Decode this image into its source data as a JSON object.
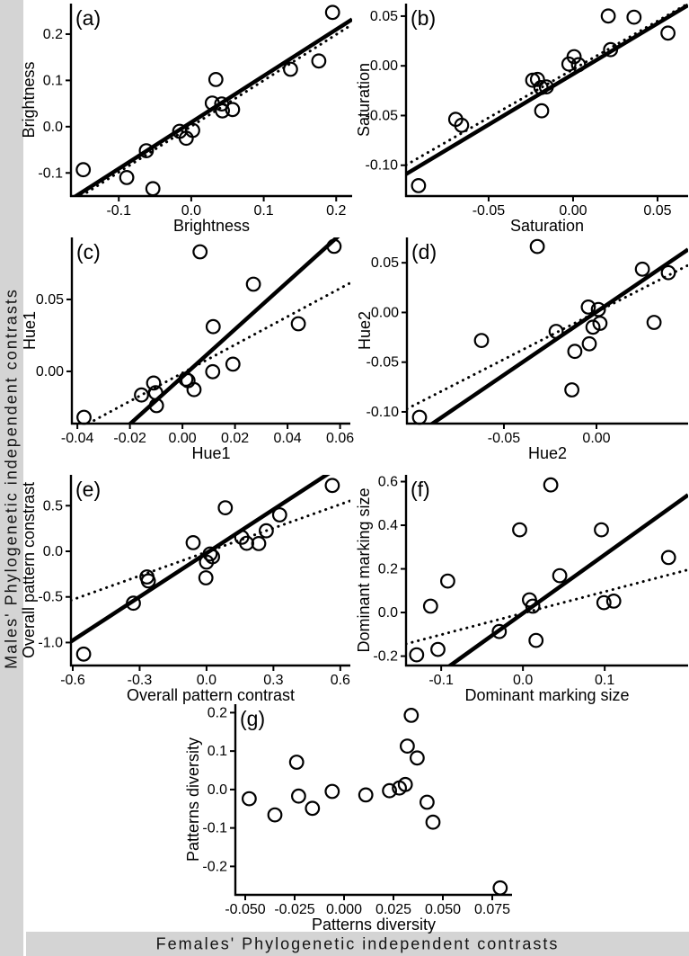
{
  "figure": {
    "left_strip_label": "Males' Phylogenetic independent contrasts",
    "bottom_strip_label": "Females' Phylogenetic independent contrasts",
    "strip_bg": "#d4d4d4",
    "ink": "#000000",
    "background": "#ffffff"
  },
  "chart_data": [
    {
      "id": "a",
      "type": "scatter",
      "tag": "(a)",
      "xlabel": "Brightness",
      "ylabel": "Brightness",
      "xlim": [
        -0.166,
        0.222
      ],
      "ylim": [
        -0.15,
        0.266
      ],
      "xticks": [
        -0.1,
        0.0,
        0.1,
        0.2
      ],
      "xtick_labels": [
        "-0.1",
        "0.0",
        "0.1",
        "0.2"
      ],
      "yticks": [
        -0.1,
        0.0,
        0.1,
        0.2
      ],
      "ytick_labels": [
        "-0.1",
        "0.0",
        "0.1",
        "0.2"
      ],
      "points": [
        [
          -0.149,
          -0.093
        ],
        [
          -0.089,
          -0.11
        ],
        [
          -0.062,
          -0.052
        ],
        [
          -0.053,
          -0.134
        ],
        [
          -0.016,
          -0.01
        ],
        [
          -0.007,
          -0.025
        ],
        [
          0.002,
          -0.008
        ],
        [
          0.029,
          0.051
        ],
        [
          0.034,
          0.102
        ],
        [
          0.042,
          0.049
        ],
        [
          0.043,
          0.034
        ],
        [
          0.057,
          0.037
        ],
        [
          0.137,
          0.124
        ],
        [
          0.176,
          0.142
        ],
        [
          0.195,
          0.247
        ]
      ],
      "lines": [
        {
          "style": "solid",
          "x1": -0.166,
          "y1": -0.157,
          "x2": 0.222,
          "y2": 0.232
        },
        {
          "style": "dotted",
          "x1": -0.166,
          "y1": -0.164,
          "x2": 0.222,
          "y2": 0.221
        }
      ]
    },
    {
      "id": "b",
      "type": "scatter",
      "tag": "(b)",
      "xlabel": "Saturation",
      "ylabel": "Saturation",
      "xlim": [
        -0.0989,
        0.0681
      ],
      "ylim": [
        -0.131,
        0.0626
      ],
      "xticks": [
        -0.05,
        0.0,
        0.05
      ],
      "xtick_labels": [
        "-0.05",
        "0.00",
        "0.05"
      ],
      "yticks": [
        -0.1,
        -0.05,
        0.0,
        0.05
      ],
      "ytick_labels": [
        "-0.10",
        "-0.05",
        "0.00",
        "0.05"
      ],
      "points": [
        [
          -0.0915,
          -0.1205
        ],
        [
          -0.0695,
          -0.0538
        ],
        [
          -0.066,
          -0.0598
        ],
        [
          -0.0239,
          -0.0145
        ],
        [
          -0.0211,
          -0.0137
        ],
        [
          -0.019,
          -0.0219
        ],
        [
          -0.0158,
          -0.0212
        ],
        [
          -0.0186,
          -0.0452
        ],
        [
          -0.0025,
          0.0018
        ],
        [
          0.0006,
          0.0092
        ],
        [
          0.0032,
          0.0012
        ],
        [
          0.0208,
          0.0501
        ],
        [
          0.0222,
          0.0163
        ],
        [
          0.0361,
          0.0489
        ],
        [
          0.0562,
          0.0329
        ]
      ],
      "lines": [
        {
          "style": "solid",
          "x1": -0.0989,
          "y1": -0.1089,
          "x2": 0.0681,
          "y2": 0.061
        },
        {
          "style": "dotted",
          "x1": -0.0989,
          "y1": -0.0998,
          "x2": 0.0681,
          "y2": 0.0627
        }
      ]
    },
    {
      "id": "c",
      "type": "scatter",
      "tag": "(c)",
      "xlabel": "Hue1",
      "ylabel": "Hue1",
      "xlim": [
        -0.0421,
        0.0639
      ],
      "ylim": [
        -0.0363,
        0.0931
      ],
      "xticks": [
        -0.04,
        -0.02,
        0.0,
        0.02,
        0.04,
        0.06
      ],
      "xtick_labels": [
        "-0.04",
        "-0.02",
        "0.00",
        "0.02",
        "0.04",
        "0.06"
      ],
      "yticks": [
        0.0,
        0.05
      ],
      "ytick_labels": [
        "0.00",
        "0.05"
      ],
      "points": [
        [
          -0.0375,
          -0.0319
        ],
        [
          -0.0156,
          -0.0164
        ],
        [
          -0.011,
          -0.0081
        ],
        [
          -0.0102,
          -0.0148
        ],
        [
          -0.0099,
          -0.0238
        ],
        [
          0.0013,
          -0.0054
        ],
        [
          0.0021,
          -0.0065
        ],
        [
          0.0044,
          -0.0127
        ],
        [
          0.0067,
          0.0831
        ],
        [
          0.0117,
          0.0311
        ],
        [
          0.0115,
          -0.0002
        ],
        [
          0.0192,
          0.005
        ],
        [
          0.027,
          0.0606
        ],
        [
          0.0441,
          0.0331
        ],
        [
          0.0577,
          0.0869
        ]
      ],
      "lines": [
        {
          "style": "solid",
          "x1": -0.0421,
          "y1": -0.073,
          "x2": 0.0639,
          "y2": 0.1015
        },
        {
          "style": "dotted",
          "x1": -0.0421,
          "y1": -0.0424,
          "x2": 0.0639,
          "y2": 0.0615
        }
      ]
    },
    {
      "id": "d",
      "type": "scatter",
      "tag": "(d)",
      "xlabel": "Hue2",
      "ylabel": "Hue2",
      "xlim": [
        -0.1024,
        0.0495
      ],
      "ylim": [
        -0.1118,
        0.0755
      ],
      "xticks": [
        -0.05,
        0.0
      ],
      "xtick_labels": [
        "-0.05",
        "0.00"
      ],
      "yticks": [
        0.05,
        0.0,
        -0.05,
        -0.1
      ],
      "ytick_labels": [
        "0.05",
        "0.00",
        "-0.05",
        "-0.10"
      ],
      "points": [
        [
          -0.0956,
          -0.1055
        ],
        [
          -0.0621,
          -0.0282
        ],
        [
          -0.032,
          0.0664
        ],
        [
          -0.0218,
          -0.0191
        ],
        [
          -0.0044,
          0.0055
        ],
        [
          0.001,
          0.003
        ],
        [
          0.0019,
          -0.0109
        ],
        [
          -0.0019,
          -0.0148
        ],
        [
          -0.0039,
          -0.0315
        ],
        [
          -0.0117,
          -0.0391
        ],
        [
          -0.0133,
          -0.0779
        ],
        [
          0.0248,
          0.0436
        ],
        [
          0.0388,
          0.04
        ],
        [
          0.0311,
          -0.01
        ]
      ],
      "lines": [
        {
          "style": "solid",
          "x1": -0.1024,
          "y1": -0.1293,
          "x2": 0.0495,
          "y2": 0.0634
        },
        {
          "style": "dotted",
          "x1": -0.1024,
          "y1": -0.097,
          "x2": 0.0495,
          "y2": 0.0475
        }
      ]
    },
    {
      "id": "e",
      "type": "scatter",
      "tag": "(e)",
      "xlabel": "Overall pattern contrast",
      "ylabel": "Overall pattern constrast",
      "xlim": [
        -0.608,
        0.645
      ],
      "ylim": [
        -1.252,
        0.838
      ],
      "xticks": [
        -0.6,
        -0.3,
        0.0,
        0.3,
        0.6
      ],
      "xtick_labels": [
        "-0.6",
        "-0.3",
        "0.0",
        "0.3",
        "0.6"
      ],
      "yticks": [
        0.5,
        0.0,
        -0.5,
        -1.0
      ],
      "ytick_labels": [
        "0.5",
        "0.0",
        "-0.5",
        "-1.0"
      ],
      "points": [
        [
          -0.551,
          -1.127
        ],
        [
          -0.328,
          -0.569
        ],
        [
          -0.267,
          -0.281
        ],
        [
          -0.261,
          -0.324
        ],
        [
          -0.06,
          0.095
        ],
        [
          0.0,
          -0.118
        ],
        [
          -0.003,
          -0.291
        ],
        [
          0.016,
          -0.03
        ],
        [
          0.027,
          -0.06
        ],
        [
          0.084,
          0.477
        ],
        [
          0.158,
          0.154
        ],
        [
          0.18,
          0.088
        ],
        [
          0.234,
          0.085
        ],
        [
          0.268,
          0.225
        ],
        [
          0.328,
          0.399
        ],
        [
          0.564,
          0.722
        ]
      ],
      "lines": [
        {
          "style": "solid",
          "x1": -0.608,
          "y1": -0.989,
          "x2": 0.645,
          "y2": 1.008
        },
        {
          "style": "dotted",
          "x1": -0.608,
          "y1": -0.537,
          "x2": 0.645,
          "y2": 0.554
        }
      ]
    },
    {
      "id": "f",
      "type": "scatter",
      "tag": "(f)",
      "xlabel": "Dominant marking size",
      "ylabel": "Dominant marking size",
      "xlim": [
        -0.143,
        0.202
      ],
      "ylim": [
        -0.243,
        0.631
      ],
      "xticks": [
        -0.1,
        0.0,
        0.1
      ],
      "xtick_labels": [
        "-0.1",
        "0.0",
        "0.1"
      ],
      "yticks": [
        -0.2,
        0.0,
        0.2,
        0.4,
        0.6
      ],
      "ytick_labels": [
        "-0.2",
        "0.0",
        "0.2",
        "0.4",
        "0.6"
      ],
      "points": [
        [
          -0.13,
          -0.194
        ],
        [
          -0.104,
          -0.169
        ],
        [
          -0.113,
          0.029
        ],
        [
          -0.092,
          0.144
        ],
        [
          -0.029,
          -0.087
        ],
        [
          -0.004,
          0.379
        ],
        [
          0.008,
          0.058
        ],
        [
          0.012,
          0.029
        ],
        [
          0.016,
          -0.128
        ],
        [
          0.034,
          0.585
        ],
        [
          0.045,
          0.169
        ],
        [
          0.096,
          0.379
        ],
        [
          0.099,
          0.045
        ],
        [
          0.111,
          0.052
        ],
        [
          0.178,
          0.252
        ]
      ],
      "lines": [
        {
          "style": "solid",
          "x1": -0.143,
          "y1": -0.388,
          "x2": 0.202,
          "y2": 0.539
        },
        {
          "style": "dotted",
          "x1": -0.143,
          "y1": -0.144,
          "x2": 0.202,
          "y2": 0.196
        }
      ]
    },
    {
      "id": "g",
      "type": "scatter",
      "tag": "(g)",
      "xlabel": "Patterns diversity",
      "ylabel": "Patterns diversity",
      "xlim": [
        -0.055,
        0.085
      ],
      "ylim": [
        -0.274,
        0.222
      ],
      "xticks": [
        -0.05,
        -0.025,
        0.0,
        0.025,
        0.05,
        0.075
      ],
      "xtick_labels": [
        "-0.050",
        "-0.025",
        "0.000",
        "0.025",
        "0.050",
        "0.075"
      ],
      "yticks": [
        -0.2,
        -0.1,
        0.0,
        0.1,
        0.2
      ],
      "ytick_labels": [
        "-0.2",
        "-0.1",
        "0.0",
        "0.1",
        "0.2"
      ],
      "points": [
        [
          -0.048,
          -0.024
        ],
        [
          -0.035,
          -0.066
        ],
        [
          -0.024,
          0.071
        ],
        [
          -0.023,
          -0.017
        ],
        [
          -0.016,
          -0.049
        ],
        [
          -0.006,
          -0.005
        ],
        [
          0.011,
          -0.014
        ],
        [
          0.023,
          -0.003
        ],
        [
          0.028,
          0.004
        ],
        [
          0.031,
          0.013
        ],
        [
          0.034,
          0.193
        ],
        [
          0.032,
          0.113
        ],
        [
          0.037,
          0.082
        ],
        [
          0.042,
          -0.033
        ],
        [
          0.045,
          -0.085
        ],
        [
          0.079,
          -0.256
        ]
      ],
      "lines": []
    }
  ]
}
